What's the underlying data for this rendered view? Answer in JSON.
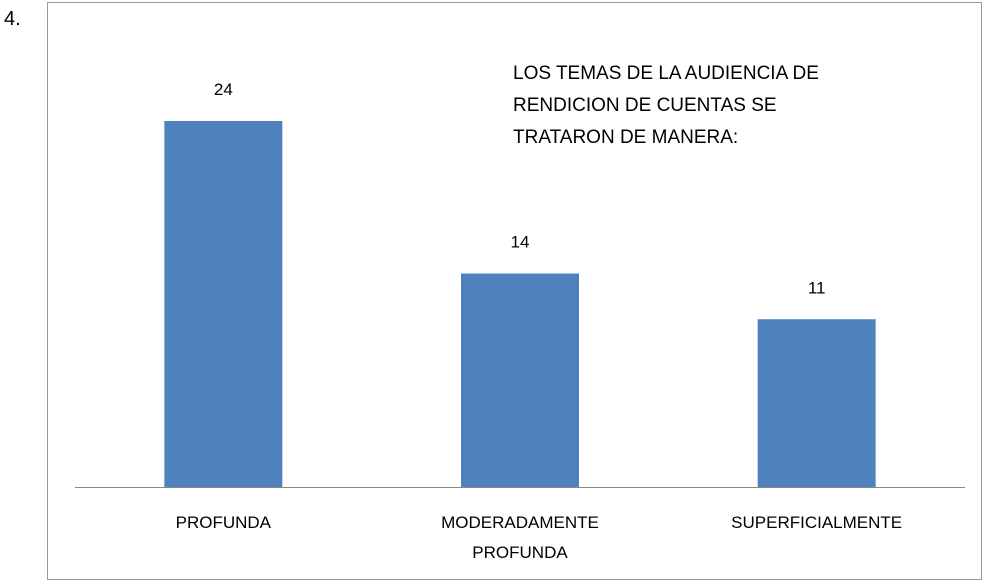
{
  "item_number": "4.",
  "chart_data": {
    "type": "bar",
    "title": "LOS TEMAS DE LA AUDIENCIA DE RENDICION DE CUENTAS SE TRATARON DE MANERA:",
    "categories": [
      "PROFUNDA",
      "MODERADAMENTE PROFUNDA",
      "SUPERFICIALMENTE"
    ],
    "values": [
      24,
      14,
      11
    ],
    "color": "#4f81bd"
  }
}
